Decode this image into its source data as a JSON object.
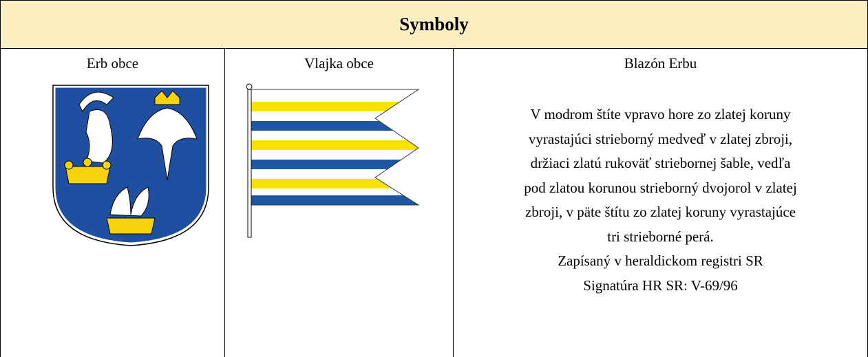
{
  "header": {
    "title": "Symboly"
  },
  "table": {
    "headers": [
      "Erb obce",
      "Vlajka obce",
      "Blazón Erbu"
    ],
    "blazon": [
      "V modrom štíte vpravo hore zo zlatej koruny",
      "vyrastajúci strieborný medveď v zlatej zbroji,",
      "držiaci zlatú rukoväť striebornej šable, vedľa",
      "pod zlatou korunou strieborný dvojorol v zlatej",
      "zbroji, v päte štítu zo zlatej koruny vyrastajúce",
      "tri strieborné perá.",
      "Zapísaný v heraldickom registri SR",
      "Signatúra HR SR: V-69/96"
    ]
  }
}
